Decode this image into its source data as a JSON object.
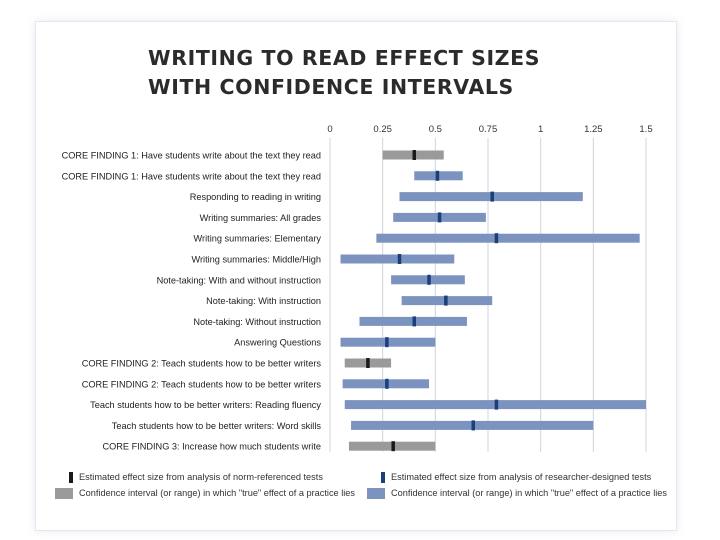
{
  "title_lines": [
    "WRITING TO READ EFFECT SIZES",
    "WITH CONFIDENCE INTERVALS"
  ],
  "colors": {
    "norm_ci": "#9a9a9a",
    "norm_es": "#1a1a1a",
    "research_ci": "#7c93bf",
    "research_es": "#1a3f7a",
    "gridline": "#cfd4dc"
  },
  "chart_data": {
    "type": "forest",
    "title": "WRITING TO READ EFFECT SIZES WITH CONFIDENCE INTERVALS",
    "xlim": [
      0,
      1.5
    ],
    "x_ticks": [
      0,
      0.25,
      0.5,
      0.75,
      1,
      1.25,
      1.5
    ],
    "x_tick_labels": [
      "0",
      "0.25",
      "0.5",
      "0.75",
      "1",
      "1.25",
      "1.5"
    ],
    "grid": true,
    "rows": [
      {
        "label": "CORE FINDING 1: Have students write about the text they read",
        "test": "norm",
        "low": 0.25,
        "high": 0.54,
        "effect": 0.4
      },
      {
        "label": "CORE FINDING 1: Have students write about the text they read",
        "test": "research",
        "low": 0.4,
        "high": 0.63,
        "effect": 0.51
      },
      {
        "label": "Responding to reading in writing",
        "test": "research",
        "low": 0.33,
        "high": 1.2,
        "effect": 0.77
      },
      {
        "label": "Writing summaries: All grades",
        "test": "research",
        "low": 0.3,
        "high": 0.74,
        "effect": 0.52
      },
      {
        "label": "Writing summaries: Elementary",
        "test": "research",
        "low": 0.22,
        "high": 1.47,
        "effect": 0.79
      },
      {
        "label": "Writing summaries: Middle/High",
        "test": "research",
        "low": 0.05,
        "high": 0.59,
        "effect": 0.33
      },
      {
        "label": "Note-taking: With and without instruction",
        "test": "research",
        "low": 0.29,
        "high": 0.64,
        "effect": 0.47
      },
      {
        "label": "Note-taking: With instruction",
        "test": "research",
        "low": 0.34,
        "high": 0.77,
        "effect": 0.55
      },
      {
        "label": "Note-taking: Without instruction",
        "test": "research",
        "low": 0.14,
        "high": 0.65,
        "effect": 0.4
      },
      {
        "label": "Answering Questions",
        "test": "research",
        "low": 0.05,
        "high": 0.5,
        "effect": 0.27
      },
      {
        "label": "CORE FINDING 2: Teach students how to be better writers",
        "test": "norm",
        "low": 0.07,
        "high": 0.29,
        "effect": 0.18
      },
      {
        "label": "CORE FINDING 2: Teach students how to be better writers",
        "test": "research",
        "low": 0.06,
        "high": 0.47,
        "effect": 0.27
      },
      {
        "label": "Teach students how to be better writers: Reading fluency",
        "test": "research",
        "low": 0.07,
        "high": 1.5,
        "effect": 0.79
      },
      {
        "label": "Teach students how to be better writers: Word skills",
        "test": "research",
        "low": 0.1,
        "high": 1.25,
        "effect": 0.68
      },
      {
        "label": "CORE FINDING 3: Increase how much students write",
        "test": "norm",
        "low": 0.09,
        "high": 0.5,
        "effect": 0.3
      }
    ]
  },
  "legend": {
    "norm_es": "Estimated effect size from analysis of norm-referenced tests",
    "research_es": "Estimated effect size from analysis of researcher-designed tests",
    "norm_ci": "Confidence interval (or range) in which \"true\" effect of a practice lies",
    "research_ci": "Confidence interval (or range) in which \"true\" effect of a practice lies"
  }
}
